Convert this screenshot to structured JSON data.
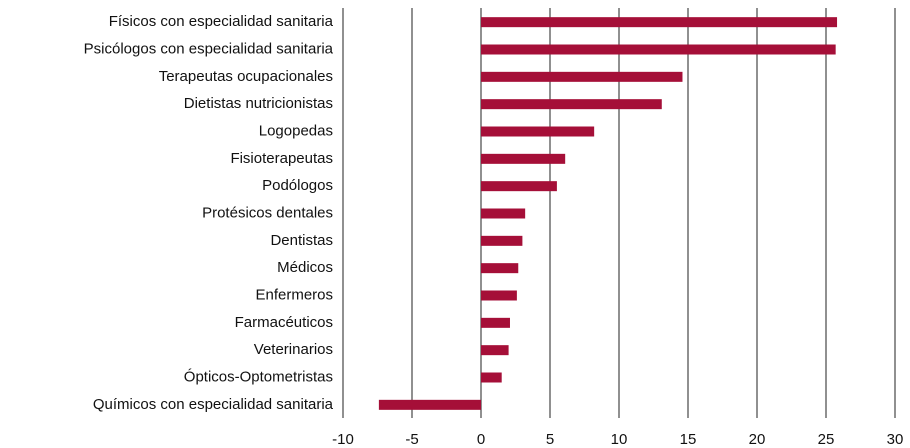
{
  "chart_data": {
    "type": "barh",
    "categories": [
      "Físicos con especialidad sanitaria",
      "Psicólogos con especialidad sanitaria",
      "Terapeutas ocupacionales",
      "Dietistas nutricionistas",
      "Logopedas",
      "Fisioterapeutas",
      "Podólogos",
      "Protésicos dentales",
      "Dentistas",
      "Médicos",
      "Enfermeros",
      "Farmacéuticos",
      "Veterinarios",
      "Ópticos-Optometristas",
      "Químicos con especialidad sanitaria"
    ],
    "values": [
      25.8,
      25.7,
      14.6,
      13.1,
      8.2,
      6.1,
      5.5,
      3.2,
      3.0,
      2.7,
      2.6,
      2.1,
      2.0,
      1.5,
      -7.4
    ],
    "color": "#a50f38",
    "xlim": [
      -10,
      30
    ],
    "xticks": [
      -10,
      -5,
      0,
      5,
      10,
      15,
      20,
      25,
      30
    ],
    "grid": true
  }
}
